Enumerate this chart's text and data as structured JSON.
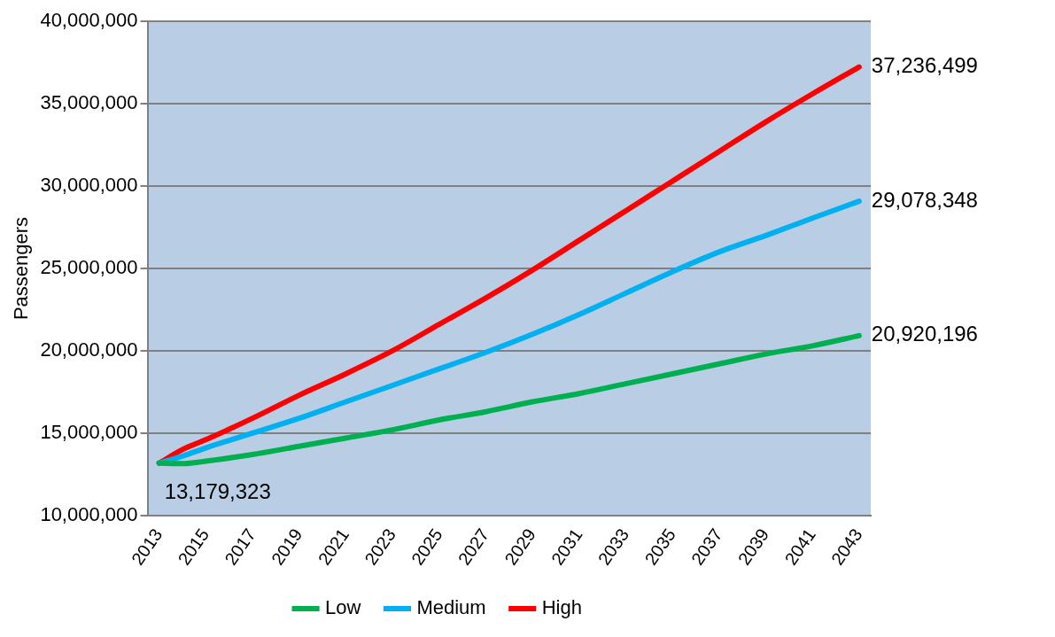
{
  "chart_data": {
    "type": "line",
    "ylabel": "Passengers",
    "x": [
      2013,
      2014,
      2015,
      2017,
      2019,
      2021,
      2023,
      2025,
      2027,
      2029,
      2031,
      2033,
      2035,
      2037,
      2039,
      2041,
      2043
    ],
    "xlim": [
      2012.5,
      2043.5
    ],
    "xticks": [
      2013,
      2015,
      2017,
      2019,
      2021,
      2023,
      2025,
      2027,
      2029,
      2031,
      2033,
      2035,
      2037,
      2039,
      2041,
      2043
    ],
    "ylim": [
      10000000,
      40000000
    ],
    "yticks": [
      {
        "value": 10000000,
        "label": "10,000,000"
      },
      {
        "value": 15000000,
        "label": "15,000,000"
      },
      {
        "value": 20000000,
        "label": "20,000,000"
      },
      {
        "value": 25000000,
        "label": "25,000,000"
      },
      {
        "value": 30000000,
        "label": "30,000,000"
      },
      {
        "value": 35000000,
        "label": "35,000,000"
      },
      {
        "value": 40000000,
        "label": "40,000,000"
      }
    ],
    "series": [
      {
        "name": "Low",
        "color": "#00b050",
        "values": [
          13179323,
          13150000,
          13300000,
          13700000,
          14200000,
          14700000,
          15200000,
          15800000,
          16300000,
          16900000,
          17400000,
          18000000,
          18600000,
          19200000,
          19800000,
          20300000,
          20920196
        ],
        "value_labels": [
          "13,179,323",
          null,
          null,
          null,
          null,
          null,
          null,
          null,
          null,
          null,
          null,
          null,
          null,
          null,
          null,
          null,
          "20,920,196"
        ]
      },
      {
        "name": "Medium",
        "color": "#00b0f0",
        "values": [
          13179323,
          13600000,
          14100000,
          15000000,
          15900000,
          16900000,
          17900000,
          18900000,
          19900000,
          21000000,
          22200000,
          23500000,
          24800000,
          26000000,
          27000000,
          28050000,
          29078348
        ],
        "value_labels": [
          null,
          null,
          null,
          null,
          null,
          null,
          null,
          null,
          null,
          null,
          null,
          null,
          null,
          null,
          null,
          null,
          "29,078,348"
        ]
      },
      {
        "name": "High",
        "color": "#ff0000",
        "values": [
          13179323,
          14000000,
          14600000,
          15900000,
          17300000,
          18600000,
          20000000,
          21600000,
          23200000,
          24900000,
          26700000,
          28500000,
          30300000,
          32100000,
          33900000,
          35600000,
          37236499
        ],
        "value_labels": [
          null,
          null,
          null,
          null,
          null,
          null,
          null,
          null,
          null,
          null,
          null,
          null,
          null,
          null,
          null,
          null,
          "37,236,499"
        ]
      }
    ],
    "grid": "y",
    "legend": "bottom",
    "marker": "none",
    "line_style": "solid"
  }
}
